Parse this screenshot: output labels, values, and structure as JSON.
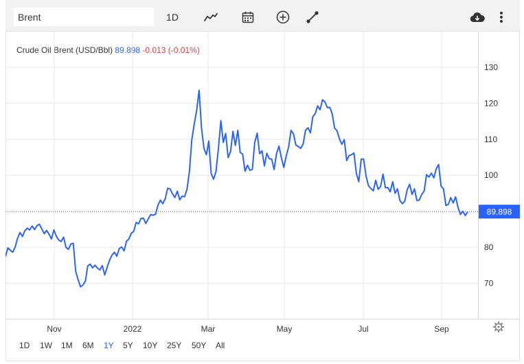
{
  "toolbar": {
    "search_value": "Brent",
    "interval_label": "1D",
    "icons": [
      "line-chart-icon",
      "calendar-icon",
      "add-compare-icon",
      "draw-line-icon",
      "download-icon",
      "more-vertical-icon"
    ]
  },
  "header": {
    "name": "Crude Oil Brent (USD/Bbl)",
    "last": "89.898",
    "change": "-0.013 (-0.01%)"
  },
  "ranges": [
    "1D",
    "1W",
    "1M",
    "6M",
    "1Y",
    "5Y",
    "10Y",
    "25Y",
    "50Y",
    "All"
  ],
  "active_range": "1Y",
  "colors": {
    "line": "#2962ff",
    "negative": "#e03c3c",
    "grid": "#e8e8e8",
    "text": "#333333"
  },
  "chart_data": {
    "type": "line",
    "series": [
      {
        "values": [
          77.5,
          79.8,
          79.2,
          78.6,
          80.1,
          82.5,
          84.1,
          83.0,
          84.6,
          85.3,
          84.8,
          85.9,
          84.9,
          86.0,
          86.4,
          85.1,
          83.8,
          84.7,
          83.6,
          82.3,
          84.8,
          83.1,
          82.0,
          81.6,
          82.8,
          80.0,
          79.4,
          80.9,
          81.1,
          73.3,
          71.0,
          69.0,
          69.5,
          70.6,
          74.8,
          75.3,
          74.3,
          75.0,
          74.2,
          73.7,
          74.9,
          72.3,
          74.4,
          76.4,
          77.8,
          78.6,
          77.5,
          79.6,
          80.1,
          79.0,
          81.7,
          82.3,
          83.9,
          84.4,
          86.9,
          86.5,
          88.0,
          88.1,
          86.6,
          87.9,
          89.1,
          88.9,
          89.2,
          91.7,
          93.1,
          92.1,
          93.5,
          96.4,
          96.2,
          94.9,
          93.8,
          95.6,
          93.2,
          94.2,
          94.0,
          96.1,
          101.0,
          109.9,
          114.2,
          118.1,
          123.6,
          113.2,
          107.5,
          105.7,
          109.5,
          100.5,
          98.9,
          101.1,
          107.6,
          115.2,
          109.1,
          111.6,
          104.9,
          106.6,
          112.2,
          108.3,
          112.5,
          106.3,
          105.9,
          101.1,
          102.8,
          101.4,
          101.6,
          109.1,
          111.7,
          106.0,
          106.8,
          102.6,
          106.1,
          104.6,
          104.5,
          101.6,
          106.0,
          108.1,
          104.9,
          102.2,
          105.3,
          107.9,
          112.5,
          111.5,
          108.4,
          108.0,
          107.5,
          108.7,
          112.5,
          113.2,
          111.8,
          116.3,
          117.1,
          119.3,
          118.2,
          121.0,
          120.4,
          118.8,
          118.9,
          117.1,
          113.1,
          112.4,
          110.1,
          108.6,
          109.9,
          104.1,
          105.5,
          105.7,
          106.2,
          100.5,
          98.2,
          104.5,
          104.5,
          99.8,
          97.1,
          96.3,
          95.7,
          98.6,
          96.1,
          96.9,
          100.3,
          96.5,
          96.6,
          95.4,
          98.2,
          95.0,
          96.2,
          93.0,
          92.1,
          92.8,
          96.0,
          97.5,
          94.7,
          96.2,
          93.0,
          93.1,
          94.7,
          95.6,
          100.2,
          99.5,
          100.6,
          99.3,
          101.8,
          103.0,
          97.0,
          96.2,
          91.6,
          91.9,
          93.8,
          92.3,
          94.0,
          91.1,
          89.1,
          90.0,
          88.8,
          89.9
        ]
      }
    ],
    "x_ticks": [
      "Nov",
      "2022",
      "Mar",
      "May",
      "Jul",
      "Sep"
    ],
    "y_ticks": [
      "70",
      "80",
      "100",
      "110",
      "120",
      "130"
    ],
    "ylim": [
      60,
      138
    ],
    "last_value_label": "89.898",
    "reference_line_value": 89.898,
    "grid": true
  }
}
